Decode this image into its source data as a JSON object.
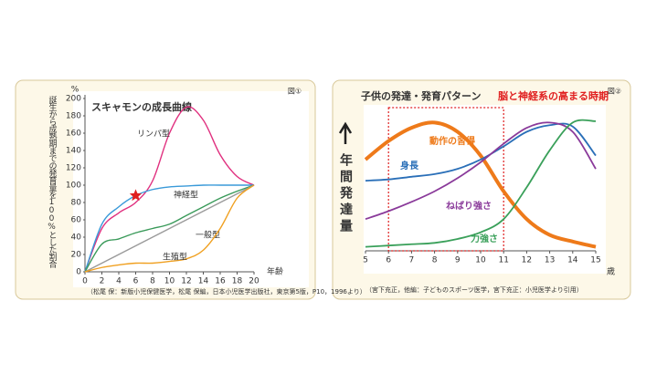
{
  "chart_data": [
    {
      "type": "line",
      "title": "スキャモンの成長曲線",
      "figure_label": "図①",
      "y_label": "誕生から成熟期までの発育量を100%とした割合",
      "y_unit": "%",
      "x_label": "年齢",
      "source": "（松尾 保：新版小児保健医学，松尾 保編，日本小児医学出版社，東京第5版，P10，1996より）",
      "x": [
        0,
        2,
        4,
        6,
        8,
        10,
        12,
        14,
        16,
        18,
        20
      ],
      "series": [
        {
          "name": "リンパ型",
          "color": "#e0307f",
          "values": [
            0,
            50,
            68,
            80,
            105,
            160,
            190,
            175,
            135,
            110,
            100
          ]
        },
        {
          "name": "神経型",
          "color": "#3a9ad9",
          "values": [
            0,
            55,
            75,
            88,
            95,
            98,
            99,
            100,
            100,
            100,
            100
          ]
        },
        {
          "name": "一般型",
          "color": "#3a9a5a",
          "values": [
            0,
            32,
            38,
            45,
            50,
            55,
            65,
            75,
            85,
            93,
            100
          ]
        },
        {
          "color": "#9a9a9a",
          "values": [
            0,
            10,
            20,
            30,
            40,
            50,
            60,
            70,
            80,
            90,
            100
          ]
        },
        {
          "name": "生殖型",
          "color": "#f0a020",
          "values": [
            0,
            5,
            8,
            10,
            10,
            12,
            15,
            25,
            50,
            85,
            100
          ]
        }
      ],
      "xlim": [
        0,
        20
      ],
      "xticks": [
        0,
        2,
        4,
        6,
        8,
        10,
        12,
        14,
        16,
        18,
        20
      ],
      "ylim": [
        0,
        200
      ],
      "yticks": [
        0,
        20,
        40,
        60,
        80,
        100,
        120,
        140,
        160,
        180,
        200
      ]
    },
    {
      "type": "line",
      "title": "子供の発達・発育パターン",
      "figure_label": "図②",
      "annotation": "脳と神経系の高まる時期",
      "highlight_range": [
        6,
        11
      ],
      "y_label": "年間発達量",
      "x_label": "歳",
      "source": "（宮下充正，他編：子どものスポーツ医学，宮下充正：小児医学より引用）",
      "x": [
        5,
        6,
        7,
        8,
        9,
        10,
        11,
        12,
        13,
        14,
        15
      ],
      "series": [
        {
          "name": "動作の習得",
          "color": "#ee7a1a",
          "values": [
            69,
            83,
            93,
            97,
            90,
            72,
            45,
            24,
            12,
            7,
            3
          ]
        },
        {
          "name": "身長",
          "color": "#2a6fb8",
          "values": [
            53,
            54,
            56,
            58,
            62,
            69,
            79,
            90,
            95,
            94,
            72
          ]
        },
        {
          "name": "ねばり強さ",
          "color": "#8a3a9a",
          "values": [
            24,
            30,
            37,
            45,
            55,
            67,
            81,
            93,
            97,
            90,
            62
          ]
        },
        {
          "name": "力強さ",
          "color": "#3aa05a",
          "values": [
            3,
            4,
            5,
            6,
            9,
            14,
            24,
            48,
            76,
            97,
            98
          ]
        }
      ],
      "xlim": [
        5,
        15
      ],
      "xticks": [
        5,
        6,
        7,
        8,
        9,
        10,
        11,
        12,
        13,
        14,
        15
      ],
      "ylim": [
        0,
        100
      ]
    }
  ]
}
